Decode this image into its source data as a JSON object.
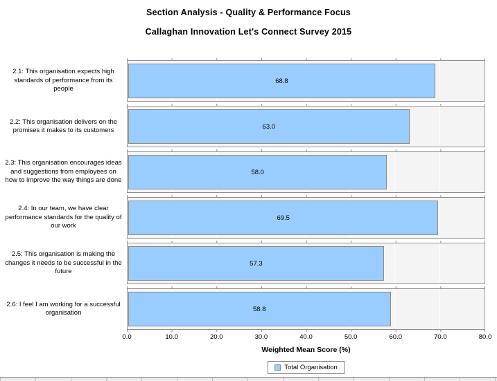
{
  "chart_data": {
    "type": "bar",
    "orientation": "horizontal",
    "title": "Section Analysis - Quality & Performance Focus",
    "subtitle": "Callaghan Innovation Let's Connect Survey 2015",
    "categories": [
      "2.1: This organisation expects high standards of performance from its people",
      "2.2: This organisation delivers on the promises it makes to its customers",
      "2.3: This organisation encourages ideas and suggestions from employees on how to improve the way things are done",
      "2.4: In our team, we have clear performance standards for the quality of our work",
      "2.5: This organisation is making the changes it needs to be successful in the future",
      "2.6: I feel I am working for a successful organisation"
    ],
    "values": [
      68.8,
      63.0,
      58.0,
      69.5,
      57.3,
      58.8
    ],
    "value_labels": [
      "68.8",
      "63.0",
      "58.0",
      "69.5",
      "57.3",
      "58.8"
    ],
    "series_name": "Total Organisation",
    "xlabel": "Weighted Mean Score (%)",
    "xlim": [
      0,
      80
    ],
    "x_tick_labels": [
      "0.0",
      "10.0",
      "20.0",
      "30.0",
      "40.0",
      "50.0",
      "60.0",
      "70.0",
      "80.0"
    ],
    "grid": true,
    "legend_position": "bottom",
    "bar_color": "#99CCFF",
    "bar_border_color": "#8B8B8B",
    "band_background_color": "#F4F4F4",
    "band_border_color": "#8E8E8E"
  },
  "legend": {
    "items": [
      {
        "label": "Total Organisation",
        "color": "#99CCFF"
      }
    ]
  }
}
